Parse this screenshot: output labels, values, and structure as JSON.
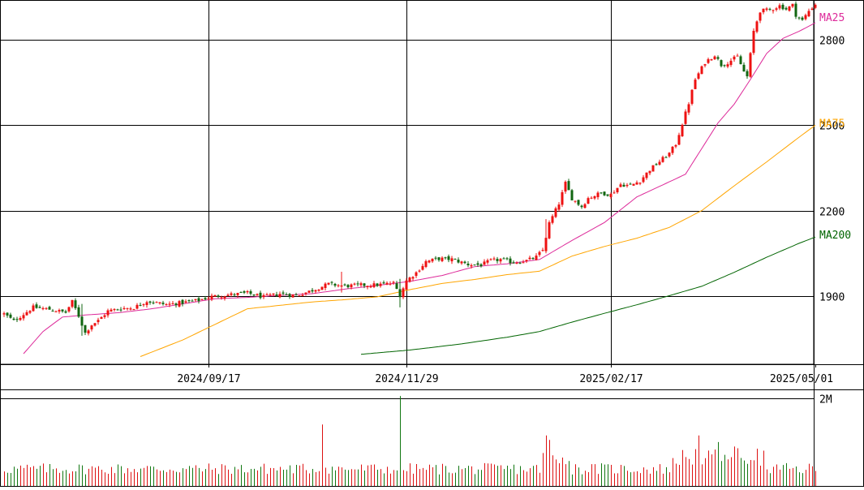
{
  "chart_data": {
    "type": "candlestick",
    "price_panel": {
      "ylim": [
        1660,
        2940
      ],
      "y_ticks": [
        {
          "value": 1900,
          "label": "1900"
        },
        {
          "value": 2200,
          "label": "2200"
        },
        {
          "value": 2500,
          "label": "2500"
        },
        {
          "value": 2800,
          "label": "2800"
        }
      ],
      "grid": true
    },
    "x_ticks": [
      {
        "index": 63,
        "label": "2024/09/17"
      },
      {
        "index": 124,
        "label": "2024/11/29"
      },
      {
        "index": 187,
        "label": "2025/02/17"
      },
      {
        "index": 250,
        "label": "2025/05/01"
      }
    ],
    "n_periods": 250,
    "moving_averages": [
      {
        "name": "MA25",
        "color": "#dd2a9a",
        "label": "MA25"
      },
      {
        "name": "MA75",
        "color": "#ffa500",
        "label": "MA75"
      },
      {
        "name": "MA200",
        "color": "#006400",
        "label": "MA200"
      }
    ],
    "up_color": "#ee1111",
    "down_color": "#116611",
    "volume_panel": {
      "ylim": [
        0,
        2200000
      ],
      "y_ticks": [
        {
          "value": 2000000,
          "label": "2M"
        }
      ],
      "up_color": "#dd1111",
      "down_color": "#117711"
    },
    "price_keypoints": [
      [
        0,
        1837
      ],
      [
        3,
        1812
      ],
      [
        9,
        1860
      ],
      [
        14,
        1853
      ],
      [
        19,
        1842
      ],
      [
        21,
        1880
      ],
      [
        23,
        1830
      ],
      [
        25,
        1770
      ],
      [
        27,
        1799
      ],
      [
        29,
        1813
      ],
      [
        32,
        1847
      ],
      [
        36,
        1856
      ],
      [
        40,
        1859
      ],
      [
        44,
        1882
      ],
      [
        50,
        1870
      ],
      [
        56,
        1878
      ],
      [
        60,
        1885
      ],
      [
        64,
        1898
      ],
      [
        70,
        1905
      ],
      [
        75,
        1910
      ],
      [
        80,
        1896
      ],
      [
        85,
        1908
      ],
      [
        90,
        1901
      ],
      [
        95,
        1920
      ],
      [
        100,
        1942
      ],
      [
        105,
        1935
      ],
      [
        110,
        1938
      ],
      [
        115,
        1939
      ],
      [
        120,
        1945
      ],
      [
        122,
        1903
      ],
      [
        124,
        1954
      ],
      [
        127,
        1982
      ],
      [
        130,
        2021
      ],
      [
        134,
        2031
      ],
      [
        138,
        2029
      ],
      [
        143,
        2011
      ],
      [
        147,
        2009
      ],
      [
        150,
        2024
      ],
      [
        153,
        2028
      ],
      [
        157,
        2018
      ],
      [
        161,
        2024
      ],
      [
        164,
        2037
      ],
      [
        166,
        2061
      ],
      [
        168,
        2155
      ],
      [
        171,
        2225
      ],
      [
        173,
        2296
      ],
      [
        175,
        2243
      ],
      [
        178,
        2214
      ],
      [
        180,
        2244
      ],
      [
        184,
        2262
      ],
      [
        187,
        2256
      ],
      [
        190,
        2292
      ],
      [
        193,
        2288
      ],
      [
        196,
        2305
      ],
      [
        199,
        2344
      ],
      [
        203,
        2382
      ],
      [
        205,
        2401
      ],
      [
        207,
        2434
      ],
      [
        209,
        2506
      ],
      [
        211,
        2578
      ],
      [
        213,
        2661
      ],
      [
        216,
        2721
      ],
      [
        219,
        2747
      ],
      [
        221,
        2712
      ],
      [
        223,
        2721
      ],
      [
        226,
        2741
      ],
      [
        228,
        2688
      ],
      [
        229,
        2671
      ],
      [
        230,
        2748
      ],
      [
        231,
        2830
      ],
      [
        233,
        2902
      ],
      [
        236,
        2905
      ],
      [
        239,
        2920
      ],
      [
        241,
        2908
      ],
      [
        243,
        2922
      ],
      [
        244,
        2888
      ],
      [
        246,
        2868
      ],
      [
        248,
        2902
      ],
      [
        250,
        2925
      ]
    ],
    "ma25_keypoints": [
      [
        6,
        1697
      ],
      [
        12,
        1775
      ],
      [
        18,
        1826
      ],
      [
        25,
        1833
      ],
      [
        35,
        1841
      ],
      [
        45,
        1854
      ],
      [
        55,
        1872
      ],
      [
        65,
        1890
      ],
      [
        75,
        1895
      ],
      [
        85,
        1902
      ],
      [
        95,
        1908
      ],
      [
        105,
        1924
      ],
      [
        115,
        1937
      ],
      [
        125,
        1951
      ],
      [
        135,
        1972
      ],
      [
        145,
        2003
      ],
      [
        155,
        2013
      ],
      [
        165,
        2028
      ],
      [
        175,
        2095
      ],
      [
        185,
        2158
      ],
      [
        195,
        2248
      ],
      [
        205,
        2301
      ],
      [
        210,
        2328
      ],
      [
        215,
        2418
      ],
      [
        220,
        2508
      ],
      [
        225,
        2574
      ],
      [
        230,
        2661
      ],
      [
        235,
        2752
      ],
      [
        240,
        2805
      ],
      [
        245,
        2830
      ],
      [
        250,
        2860
      ]
    ],
    "ma75_keypoints": [
      [
        42,
        1687
      ],
      [
        55,
        1745
      ],
      [
        65,
        1800
      ],
      [
        75,
        1855
      ],
      [
        85,
        1867
      ],
      [
        95,
        1879
      ],
      [
        105,
        1887
      ],
      [
        115,
        1897
      ],
      [
        125,
        1922
      ],
      [
        135,
        1944
      ],
      [
        145,
        1958
      ],
      [
        155,
        1975
      ],
      [
        165,
        1987
      ],
      [
        175,
        2040
      ],
      [
        185,
        2074
      ],
      [
        195,
        2103
      ],
      [
        205,
        2141
      ],
      [
        215,
        2200
      ],
      [
        225,
        2287
      ],
      [
        235,
        2371
      ],
      [
        245,
        2458
      ],
      [
        250,
        2500
      ]
    ],
    "ma200_keypoints": [
      [
        110,
        1695
      ],
      [
        125,
        1710
      ],
      [
        140,
        1730
      ],
      [
        155,
        1755
      ],
      [
        165,
        1775
      ],
      [
        175,
        1808
      ],
      [
        185,
        1839
      ],
      [
        195,
        1869
      ],
      [
        205,
        1901
      ],
      [
        215,
        1934
      ],
      [
        225,
        1983
      ],
      [
        235,
        2036
      ],
      [
        245,
        2085
      ],
      [
        250,
        2107
      ]
    ]
  }
}
